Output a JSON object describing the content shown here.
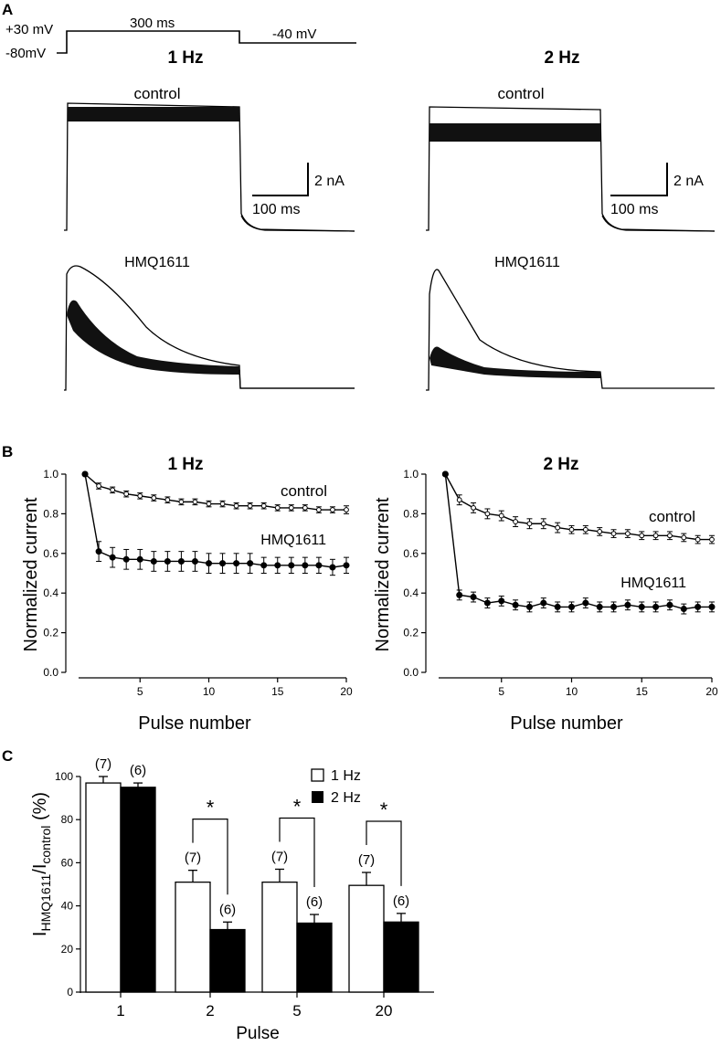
{
  "panel_labels": {
    "a": "A",
    "b": "B",
    "c": "C"
  },
  "protocol": {
    "hold_label": "-80mV",
    "step_label": "+30 mV",
    "duration_label": "300 ms",
    "tail_label": "-40 mV"
  },
  "traces": {
    "freq_left": "1 Hz",
    "freq_right": "2 Hz",
    "control_label": "control",
    "drug_label": "HMQ1611",
    "scale_current": "2 nA",
    "scale_time": "100 ms"
  },
  "chart_data": [
    {
      "type": "line",
      "title": "1 Hz",
      "xlabel": "Pulse number",
      "ylabel": "Normalized current",
      "xlim": [
        0,
        20
      ],
      "ylim": [
        0,
        1.0
      ],
      "x_ticks": [
        5,
        10,
        15,
        20
      ],
      "y_ticks": [
        0.0,
        0.2,
        0.4,
        0.6,
        0.8,
        1.0
      ],
      "x": [
        1,
        2,
        3,
        4,
        5,
        6,
        7,
        8,
        9,
        10,
        11,
        12,
        13,
        14,
        15,
        16,
        17,
        18,
        19,
        20
      ],
      "series": [
        {
          "name": "control",
          "values": [
            1.0,
            0.94,
            0.92,
            0.9,
            0.89,
            0.88,
            0.87,
            0.86,
            0.86,
            0.85,
            0.85,
            0.84,
            0.84,
            0.84,
            0.83,
            0.83,
            0.83,
            0.82,
            0.82,
            0.82
          ],
          "error": [
            0,
            0.015,
            0.015,
            0.015,
            0.015,
            0.015,
            0.015,
            0.015,
            0.015,
            0.015,
            0.015,
            0.015,
            0.015,
            0.015,
            0.015,
            0.015,
            0.015,
            0.015,
            0.015,
            0.02
          ]
        },
        {
          "name": "HMQ1611",
          "values": [
            1.0,
            0.61,
            0.58,
            0.57,
            0.57,
            0.56,
            0.56,
            0.56,
            0.56,
            0.55,
            0.55,
            0.55,
            0.55,
            0.54,
            0.54,
            0.54,
            0.54,
            0.54,
            0.53,
            0.54
          ],
          "error": [
            0,
            0.05,
            0.05,
            0.05,
            0.05,
            0.05,
            0.05,
            0.05,
            0.05,
            0.05,
            0.05,
            0.05,
            0.05,
            0.04,
            0.04,
            0.04,
            0.04,
            0.04,
            0.04,
            0.04
          ]
        }
      ]
    },
    {
      "type": "line",
      "title": "2 Hz",
      "xlabel": "Pulse number",
      "ylabel": "Normalized current",
      "xlim": [
        0,
        20
      ],
      "ylim": [
        0,
        1.0
      ],
      "x_ticks": [
        5,
        10,
        15,
        20
      ],
      "y_ticks": [
        0.0,
        0.2,
        0.4,
        0.6,
        0.8,
        1.0
      ],
      "x": [
        1,
        2,
        3,
        4,
        5,
        6,
        7,
        8,
        9,
        10,
        11,
        12,
        13,
        14,
        15,
        16,
        17,
        18,
        19,
        20
      ],
      "series": [
        {
          "name": "control",
          "values": [
            1.0,
            0.87,
            0.83,
            0.8,
            0.79,
            0.76,
            0.75,
            0.75,
            0.73,
            0.72,
            0.72,
            0.71,
            0.7,
            0.7,
            0.69,
            0.69,
            0.69,
            0.68,
            0.67,
            0.67
          ],
          "error": [
            0,
            0.025,
            0.025,
            0.025,
            0.025,
            0.025,
            0.025,
            0.025,
            0.025,
            0.02,
            0.02,
            0.02,
            0.02,
            0.02,
            0.02,
            0.02,
            0.02,
            0.02,
            0.02,
            0.02
          ]
        },
        {
          "name": "HMQ1611",
          "values": [
            1.0,
            0.39,
            0.38,
            0.35,
            0.36,
            0.34,
            0.33,
            0.35,
            0.33,
            0.33,
            0.35,
            0.33,
            0.33,
            0.34,
            0.33,
            0.33,
            0.34,
            0.32,
            0.33,
            0.33
          ],
          "error": [
            0,
            0.025,
            0.025,
            0.025,
            0.025,
            0.025,
            0.025,
            0.025,
            0.025,
            0.025,
            0.025,
            0.025,
            0.025,
            0.025,
            0.025,
            0.025,
            0.025,
            0.025,
            0.025,
            0.025
          ]
        }
      ]
    },
    {
      "type": "bar",
      "xlabel": "Pulse",
      "ylabel": "I_HMQ1611/I_control (%)",
      "ylabel_parts": {
        "I1": "I",
        "sub1": "HMQ1611",
        "slash": "/I",
        "sub2": "control",
        "unit": " (%)"
      },
      "ylim": [
        0,
        100
      ],
      "y_ticks": [
        0,
        20,
        40,
        60,
        80,
        100
      ],
      "categories": [
        "1",
        "2",
        "5",
        "20"
      ],
      "series": [
        {
          "name": "1 Hz",
          "color": "#ffffff",
          "values": [
            97,
            51,
            51,
            49.5
          ],
          "error": [
            3,
            5.5,
            6,
            6
          ],
          "n_labels": [
            "(7)",
            "(7)",
            "(7)",
            "(7)"
          ]
        },
        {
          "name": "2 Hz",
          "color": "#000000",
          "values": [
            95,
            29,
            32,
            32.5
          ],
          "error": [
            2,
            3.5,
            4,
            4
          ],
          "n_labels": [
            "(6)",
            "(6)",
            "(6)",
            "(6)"
          ]
        }
      ],
      "significance": [
        {
          "category": "2",
          "mark": "*"
        },
        {
          "category": "5",
          "mark": "*"
        },
        {
          "category": "20",
          "mark": "*"
        }
      ],
      "legend_position": "top-right"
    }
  ]
}
